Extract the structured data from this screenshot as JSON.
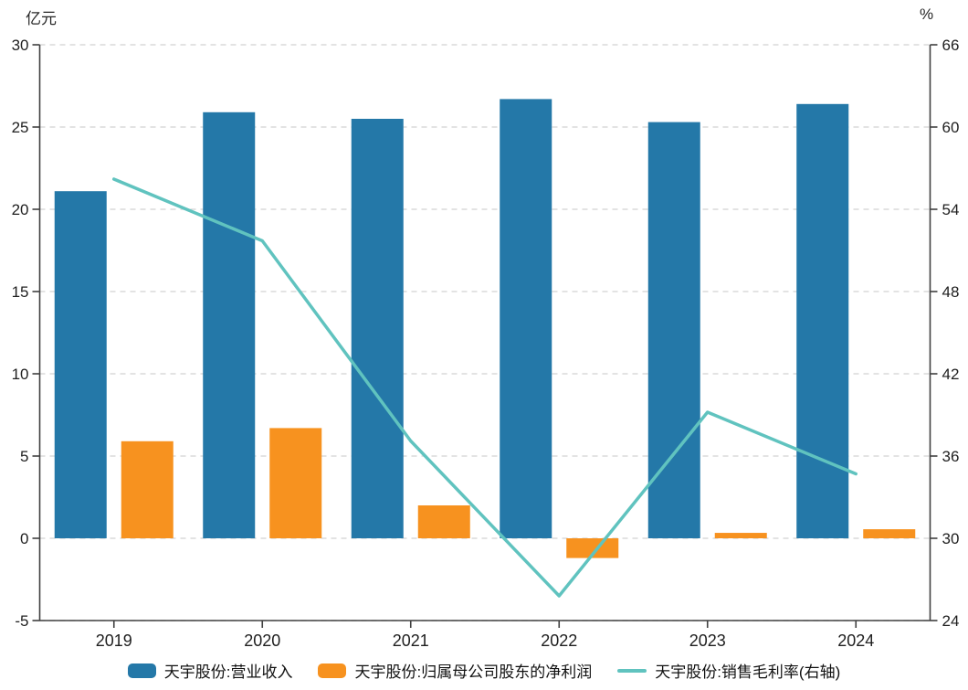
{
  "chart_data": {
    "type": "bar+line",
    "title": "",
    "categories": [
      "2019",
      "2020",
      "2021",
      "2022",
      "2023",
      "2024"
    ],
    "series": [
      {
        "name": "天宇股份:营业收入",
        "kind": "bar",
        "axis": "left",
        "color": "#2478A8",
        "values": [
          21.1,
          25.9,
          25.5,
          26.7,
          25.3,
          26.4
        ]
      },
      {
        "name": "天宇股份:归属母公司股东的净利润",
        "kind": "bar",
        "axis": "left",
        "color": "#F7921F",
        "values": [
          5.9,
          6.7,
          2.0,
          -1.2,
          0.33,
          0.55
        ]
      },
      {
        "name": "天宇股份:销售毛利率(右轴)",
        "kind": "line",
        "axis": "right",
        "color": "#60C3BF",
        "values": [
          56.2,
          51.7,
          37.1,
          25.8,
          39.2,
          34.7
        ]
      }
    ],
    "left_axis": {
      "unit": "亿元",
      "min": -5,
      "max": 30,
      "ticks": [
        30,
        25,
        20,
        15,
        10,
        5,
        0,
        -5
      ]
    },
    "right_axis": {
      "unit": "%",
      "min": 24,
      "max": 66,
      "ticks": [
        66,
        60,
        54,
        48,
        42,
        36,
        30,
        24
      ]
    },
    "grid": "horizontal-dashed",
    "legend_position": "bottom",
    "colors": {
      "axis": "#404040",
      "gridline": "#DADADA",
      "tick_text": "#1f1f1f"
    }
  }
}
